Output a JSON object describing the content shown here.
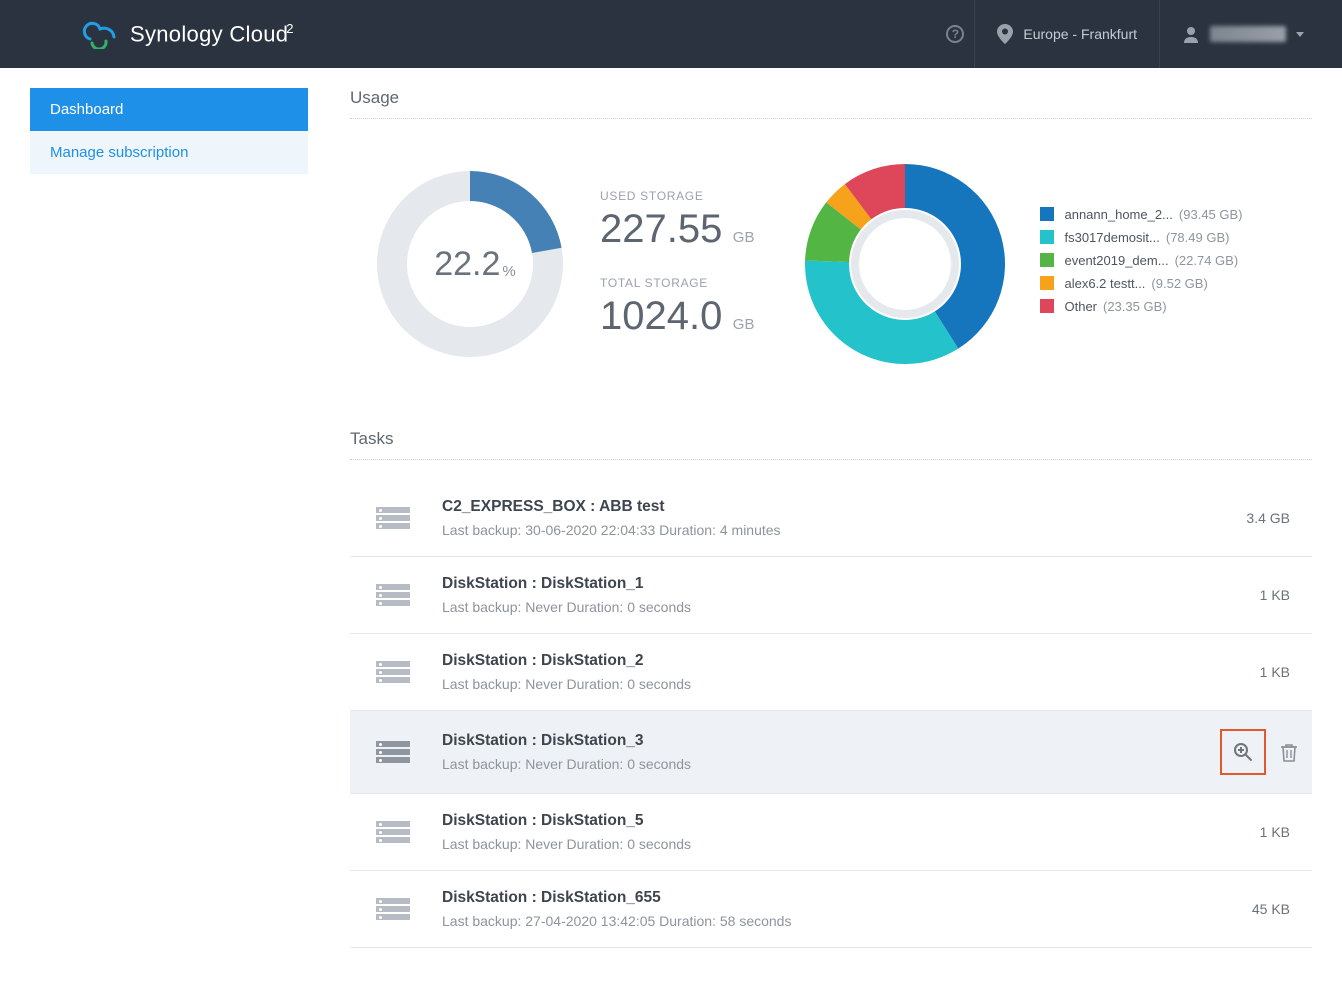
{
  "header": {
    "brand": "Synology Cloud",
    "brand_sup": "2",
    "region": "Europe - Frankfurt",
    "username": "████████"
  },
  "sidebar": {
    "items": [
      {
        "label": "Dashboard",
        "active": true
      },
      {
        "label": "Manage subscription",
        "active": false
      }
    ]
  },
  "usage": {
    "section_title": "Usage",
    "percent": "22.2",
    "percent_unit": "%",
    "used_label": "USED STORAGE",
    "used_value": "227.55",
    "used_unit": "GB",
    "total_label": "TOTAL STORAGE",
    "total_value": "1024.0",
    "total_unit": "GB",
    "gauge": {
      "track_color": "#e5e8ec",
      "fill_color": "#4581b5",
      "fraction": 0.222
    },
    "breakdown": {
      "bg": "#e5e8ec",
      "items": [
        {
          "name": "annann_home_2...",
          "size": "(93.45 GB)",
          "color": "#1676bd",
          "value": 93.45
        },
        {
          "name": "fs3017demosit...",
          "size": "(78.49 GB)",
          "color": "#24c2cb",
          "value": 78.49
        },
        {
          "name": "event2019_dem...",
          "size": "(22.74 GB)",
          "color": "#52b544",
          "value": 22.74
        },
        {
          "name": "alex6.2 testt...",
          "size": "(9.52 GB)",
          "color": "#f6a31b",
          "value": 9.52
        },
        {
          "name": "Other",
          "size": "(23.35 GB)",
          "color": "#de4759",
          "value": 23.35
        }
      ]
    }
  },
  "tasks": {
    "section_title": "Tasks",
    "rows": [
      {
        "title": "C2_EXPRESS_BOX : ABB test",
        "sub": "Last backup: 30-06-2020 22:04:33 Duration: 4 minutes",
        "size": "3.4 GB",
        "hovered": false
      },
      {
        "title": "DiskStation : DiskStation_1",
        "sub": "Last backup: Never Duration: 0 seconds",
        "size": "1 KB",
        "hovered": false
      },
      {
        "title": "DiskStation : DiskStation_2",
        "sub": "Last backup: Never Duration: 0 seconds",
        "size": "1 KB",
        "hovered": false
      },
      {
        "title": "DiskStation : DiskStation_3",
        "sub": "Last backup: Never Duration: 0 seconds",
        "size": "",
        "hovered": true
      },
      {
        "title": "DiskStation : DiskStation_5",
        "sub": "Last backup: Never Duration: 0 seconds",
        "size": "1 KB",
        "hovered": false
      },
      {
        "title": "DiskStation : DiskStation_655",
        "sub": "Last backup: 27-04-2020 13:42:05 Duration: 58 seconds",
        "size": "45 KB",
        "hovered": false
      }
    ]
  },
  "colors": {
    "topbar": "#2b3340",
    "primary": "#1e90e8",
    "highlight_border": "#e05a2b"
  }
}
